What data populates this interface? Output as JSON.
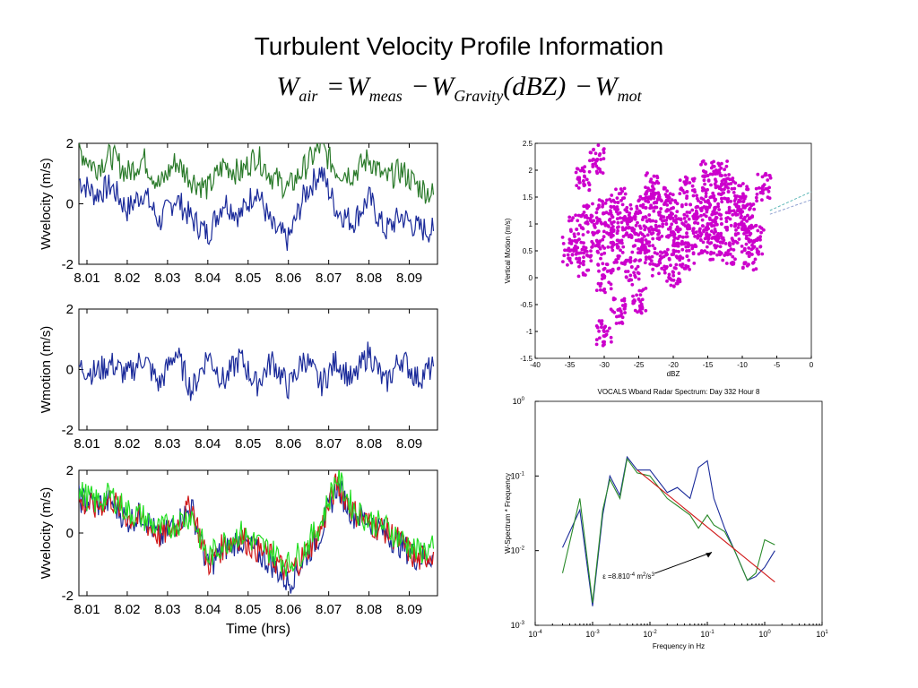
{
  "slide": {
    "title": "Turbulent Velocity Profile Information",
    "equation": {
      "lhs": "W",
      "lhs_sub": "air",
      "eq": "=",
      "t1": "W",
      "t1_sub": "meas",
      "minus1": "−",
      "t2": "W",
      "t2_sub": "Gravity",
      "t2_arg": "(dBZ)",
      "minus2": "−",
      "t3": "W",
      "t3_sub": "mot"
    }
  },
  "chart_data": [
    {
      "type": "line",
      "ylabel": "Wvelocity (m/s)",
      "xlabel": "",
      "xlim": [
        8.008,
        8.097
      ],
      "ylim": [
        -2,
        2
      ],
      "xticks": [
        "8.01",
        "8.02",
        "8.03",
        "8.04",
        "8.05",
        "8.06",
        "8.07",
        "8.08",
        "8.09"
      ],
      "yticks": [
        "2",
        "0",
        "-2"
      ],
      "colors": [
        "#1a2a9a",
        "#2a7a2a"
      ],
      "series": [
        {
          "values_x": [
            8.008,
            8.012,
            8.016,
            8.02,
            8.024,
            8.028,
            8.032,
            8.036,
            8.04,
            8.044,
            8.048,
            8.052,
            8.056,
            8.06,
            8.064,
            8.068,
            8.072,
            8.076,
            8.08,
            8.084,
            8.088,
            8.092,
            8.096
          ],
          "values": [
            0.8,
            0.3,
            0.6,
            -0.2,
            0.4,
            -0.6,
            0.2,
            -0.5,
            -1.0,
            0.1,
            -0.4,
            0.5,
            -0.8,
            -1.2,
            0.3,
            1.1,
            -0.2,
            -0.6,
            0.2,
            -0.9,
            -0.4,
            -0.8,
            -0.9
          ]
        },
        {
          "values_x": [
            8.008,
            8.012,
            8.016,
            8.02,
            8.024,
            8.028,
            8.032,
            8.036,
            8.04,
            8.044,
            8.048,
            8.052,
            8.056,
            8.06,
            8.064,
            8.068,
            8.072,
            8.076,
            8.08,
            8.084,
            8.088,
            8.092,
            8.096
          ],
          "values": [
            1.8,
            1.2,
            1.6,
            1.0,
            1.5,
            0.6,
            1.4,
            0.8,
            0.5,
            1.3,
            1.0,
            1.6,
            0.9,
            0.5,
            1.2,
            1.9,
            1.1,
            1.0,
            1.5,
            0.8,
            1.1,
            0.6,
            0.3
          ]
        }
      ]
    },
    {
      "type": "line",
      "ylabel": "Wmotion (m/s)",
      "xlabel": "",
      "xlim": [
        8.008,
        8.097
      ],
      "ylim": [
        -2,
        2
      ],
      "xticks": [
        "8.01",
        "8.02",
        "8.03",
        "8.04",
        "8.05",
        "8.06",
        "8.07",
        "8.08",
        "8.09"
      ],
      "yticks": [
        "2",
        "0",
        "-2"
      ],
      "colors": [
        "#1a2a9a"
      ],
      "series": [
        {
          "values_x": [
            8.008,
            8.012,
            8.016,
            8.02,
            8.024,
            8.028,
            8.032,
            8.036,
            8.04,
            8.044,
            8.048,
            8.052,
            8.056,
            8.06,
            8.064,
            8.068,
            8.072,
            8.076,
            8.08,
            8.084,
            8.088,
            8.092,
            8.096
          ],
          "values": [
            0.1,
            -0.1,
            0.2,
            -0.2,
            0.4,
            -0.5,
            0.6,
            -0.7,
            0.5,
            -0.4,
            0.4,
            -0.5,
            0.3,
            -0.6,
            0.4,
            -0.5,
            0.3,
            -0.4,
            0.6,
            -0.5,
            0.4,
            -0.3,
            0.1
          ]
        }
      ]
    },
    {
      "type": "line",
      "ylabel": "Wvelocity (m/s)",
      "xlabel": "Time (hrs)",
      "xlim": [
        8.008,
        8.097
      ],
      "ylim": [
        -2,
        2
      ],
      "xticks": [
        "8.01",
        "8.02",
        "8.03",
        "8.04",
        "8.05",
        "8.06",
        "8.07",
        "8.08",
        "8.09"
      ],
      "yticks": [
        "2",
        "0",
        "-2"
      ],
      "colors": [
        "#1a2a9a",
        "#d01818",
        "#22dd22"
      ],
      "series": [
        {
          "values_x": [
            8.008,
            8.012,
            8.016,
            8.02,
            8.024,
            8.028,
            8.032,
            8.036,
            8.04,
            8.044,
            8.048,
            8.052,
            8.056,
            8.06,
            8.064,
            8.068,
            8.072,
            8.076,
            8.08,
            8.084,
            8.088,
            8.092,
            8.096
          ],
          "values": [
            1.1,
            0.9,
            1.0,
            0.4,
            0.6,
            -0.2,
            0.3,
            0.8,
            -1.1,
            -0.5,
            -0.2,
            -0.6,
            -1.0,
            -1.6,
            -0.8,
            0.0,
            1.5,
            0.6,
            0.4,
            0.0,
            -0.4,
            -0.8,
            -0.7
          ]
        },
        {
          "values_x": [
            8.008,
            8.012,
            8.016,
            8.02,
            8.024,
            8.028,
            8.032,
            8.036,
            8.04,
            8.044,
            8.048,
            8.052,
            8.056,
            8.06,
            8.064,
            8.068,
            8.072,
            8.076,
            8.08,
            8.084,
            8.088,
            8.092,
            8.096
          ],
          "values": [
            1.0,
            0.8,
            1.1,
            0.5,
            0.4,
            -0.1,
            0.2,
            0.9,
            -1.0,
            -0.4,
            -0.1,
            -0.5,
            -0.8,
            -1.3,
            -0.7,
            0.1,
            1.6,
            0.7,
            0.3,
            0.1,
            -0.3,
            -0.9,
            -0.6
          ]
        },
        {
          "values_x": [
            8.008,
            8.012,
            8.016,
            8.02,
            8.024,
            8.028,
            8.032,
            8.036,
            8.04,
            8.044,
            8.048,
            8.052,
            8.056,
            8.06,
            8.064,
            8.068,
            8.072,
            8.076,
            8.08,
            8.084,
            8.088,
            8.092,
            8.096
          ],
          "values": [
            1.3,
            1.0,
            1.2,
            0.7,
            0.5,
            0.1,
            0.3,
            0.6,
            -0.8,
            -0.3,
            0.0,
            -0.3,
            -0.6,
            -1.0,
            -0.5,
            0.3,
            1.8,
            0.8,
            0.4,
            0.2,
            -0.2,
            -0.6,
            -0.5
          ]
        }
      ]
    },
    {
      "type": "scatter",
      "xlabel": "dBZ",
      "ylabel": "Vertical Motion (m/s)",
      "xlim": [
        -40,
        0
      ],
      "ylim": [
        -1.5,
        2.5
      ],
      "xticks": [
        "-40",
        "-35",
        "-30",
        "-25",
        "-20",
        "-15",
        "-10",
        "-5",
        "0"
      ],
      "yticks": [
        "2.5",
        "2",
        "1.5",
        "1",
        "0.5",
        "0",
        "-0.5",
        "-1",
        "-1.5"
      ],
      "point_color": "#cc00cc",
      "points": [
        [
          -35,
          0.5
        ],
        [
          -34,
          0.9
        ],
        [
          -33,
          0.3
        ],
        [
          -32,
          1.1
        ],
        [
          -31,
          0.6
        ],
        [
          -30,
          0.0
        ],
        [
          -30,
          1.2
        ],
        [
          -29,
          0.8
        ],
        [
          -28,
          0.4
        ],
        [
          -28,
          1.4
        ],
        [
          -27,
          0.9
        ],
        [
          -26,
          0.2
        ],
        [
          -26,
          1.1
        ],
        [
          -25,
          0.7
        ],
        [
          -24,
          1.3
        ],
        [
          -24,
          0.5
        ],
        [
          -23,
          0.9
        ],
        [
          -22,
          1.5
        ],
        [
          -22,
          0.3
        ],
        [
          -21,
          1.0
        ],
        [
          -20,
          0.6
        ],
        [
          -20,
          1.3
        ],
        [
          -19,
          0.9
        ],
        [
          -18,
          1.6
        ],
        [
          -18,
          0.4
        ],
        [
          -17,
          1.1
        ],
        [
          -16,
          0.7
        ],
        [
          -16,
          1.4
        ],
        [
          -15,
          1.0
        ],
        [
          -15,
          1.9
        ],
        [
          -14,
          0.6
        ],
        [
          -14,
          1.3
        ],
        [
          -13,
          1.0
        ],
        [
          -12,
          1.6
        ],
        [
          -12,
          0.5
        ],
        [
          -11,
          1.2
        ],
        [
          -10,
          0.9
        ],
        [
          -10,
          1.5
        ],
        [
          -9,
          1.1
        ],
        [
          -8,
          0.7
        ],
        [
          -30,
          -1.0
        ],
        [
          -31,
          2.2
        ],
        [
          -25,
          -0.4
        ],
        [
          -33,
          1.8
        ],
        [
          -13,
          1.9
        ],
        [
          -7,
          1.7
        ],
        [
          -9,
          0.4
        ],
        [
          -20,
          0.1
        ],
        [
          -28,
          -0.6
        ],
        [
          -23,
          1.7
        ]
      ],
      "fit_lines": [
        {
          "x": [
            -6,
            0
          ],
          "y": [
            1.25,
            1.6
          ],
          "color": "#5fb8b8"
        },
        {
          "x": [
            -6,
            0
          ],
          "y": [
            1.18,
            1.45
          ],
          "color": "#8fa0d0"
        }
      ]
    },
    {
      "type": "line",
      "title": "VOCALS Wband Radar Spectrum:   Day 332   Hour 8",
      "xlabel": "Frequency in Hz",
      "ylabel": "W-Spectrum * Frequency",
      "xscale": "log",
      "yscale": "log",
      "xlim_exp": [
        -4,
        1
      ],
      "ylim_exp": [
        -3,
        0
      ],
      "xticks": [
        {
          "base": "10",
          "exp": "-4"
        },
        {
          "base": "10",
          "exp": "-3"
        },
        {
          "base": "10",
          "exp": "-2"
        },
        {
          "base": "10",
          "exp": "-1"
        },
        {
          "base": "10",
          "exp": "0"
        },
        {
          "base": "10",
          "exp": "1"
        }
      ],
      "yticks": [
        {
          "base": "10",
          "exp": "0"
        },
        {
          "base": "10",
          "exp": "-1"
        },
        {
          "base": "10",
          "exp": "-2"
        },
        {
          "base": "10",
          "exp": "-3"
        }
      ],
      "series": [
        {
          "color": "#1a2a9a",
          "x": [
            0.0003,
            0.0006,
            0.001,
            0.0015,
            0.002,
            0.003,
            0.004,
            0.006,
            0.01,
            0.02,
            0.03,
            0.05,
            0.07,
            0.1,
            0.13,
            0.2,
            0.3,
            0.5,
            0.7,
            1.0,
            1.5
          ],
          "y": [
            0.011,
            0.035,
            0.0018,
            0.03,
            0.1,
            0.055,
            0.18,
            0.12,
            0.12,
            0.06,
            0.07,
            0.05,
            0.13,
            0.16,
            0.05,
            0.02,
            0.01,
            0.004,
            0.0045,
            0.006,
            0.01
          ]
        },
        {
          "color": "#2a8a2a",
          "x": [
            0.0003,
            0.0006,
            0.001,
            0.0015,
            0.002,
            0.003,
            0.004,
            0.006,
            0.01,
            0.02,
            0.03,
            0.05,
            0.07,
            0.1,
            0.13,
            0.2,
            0.3,
            0.5,
            0.7,
            1.0,
            1.5
          ],
          "y": [
            0.005,
            0.05,
            0.002,
            0.035,
            0.09,
            0.05,
            0.17,
            0.11,
            0.1,
            0.05,
            0.04,
            0.03,
            0.02,
            0.03,
            0.022,
            0.018,
            0.01,
            0.004,
            0.005,
            0.014,
            0.012
          ]
        },
        {
          "color": "#d01818",
          "x": [
            0.006,
            1.5
          ],
          "y": [
            0.12,
            0.0038
          ]
        }
      ],
      "annotation": {
        "text": "ε =8.810",
        "exp": "-4",
        "units": " m",
        "units_exp": "2",
        "units_tail": "/s",
        "units_tail_exp": "3"
      }
    }
  ]
}
